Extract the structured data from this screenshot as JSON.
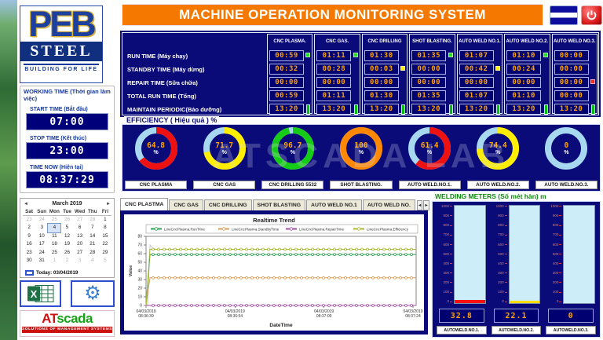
{
  "header": {
    "title": "MACHINE OPERATION MONITORING SYSTEM"
  },
  "icons": {
    "prev": "◄",
    "next": "►",
    "gear": "⚙",
    "power": "power-icon",
    "flag": "flag-icon",
    "excel": "excel-icon"
  },
  "logo": {
    "peb": "PEB",
    "steel": "STEEL",
    "tagline": "BUILDING FOR LIFE"
  },
  "atscada": {
    "at": "AT",
    "scada": "scada",
    "tagline": "SOLUTIONS OF MANAGEMENT SYSTEMS"
  },
  "working_time": {
    "title": "WORKING TIME (Thời gian làm việc)",
    "start_label": "START TIME (Bắt đầu)",
    "start_value": "07:00",
    "stop_label": "STOP TIME (Kết thúc)",
    "stop_value": "23:00",
    "now_label": "TIME NOW (Hiện tại)",
    "now_value": "08:37:29"
  },
  "calendar": {
    "month_label": "March 2019",
    "day_headers": [
      "Sat",
      "Sun",
      "Mon",
      "Tue",
      "Wed",
      "Thu",
      "Fri"
    ],
    "weeks": [
      [
        23,
        24,
        25,
        26,
        27,
        28,
        1
      ],
      [
        2,
        3,
        4,
        5,
        6,
        7,
        8
      ],
      [
        9,
        10,
        11,
        12,
        13,
        14,
        15
      ],
      [
        16,
        17,
        18,
        19,
        20,
        21,
        22
      ],
      [
        23,
        24,
        25,
        26,
        27,
        28,
        29
      ],
      [
        30,
        31,
        1,
        2,
        3,
        4,
        5
      ]
    ],
    "selected": {
      "week": 1,
      "col": 2,
      "day": 4
    },
    "today_label": "Today: 03/04/2019"
  },
  "machine_table": {
    "row_labels": [
      "RUN TIME (Máy chạy)",
      "STANDBY TIME (Máy dừng)",
      "REPAIR TIME (Sữa chữa)",
      "TOTAL RUN TIME (Tổng)",
      "MAINTAIN PERIODIC(Bảo dưỡng)"
    ],
    "bottom_bar_color": "#00c000",
    "columns": [
      {
        "name": "CNC PLASMA.",
        "values": [
          "00:59",
          "00:32",
          "00:00",
          "00:59",
          "13:20"
        ],
        "status_row": 0,
        "status_color": "#22dd22"
      },
      {
        "name": "CNC GAS.",
        "values": [
          "01:11",
          "00:28",
          "00:00",
          "01:11",
          "13:20"
        ],
        "status_row": 0,
        "status_color": "#22dd22"
      },
      {
        "name": "CNC DRILLING",
        "values": [
          "01:30",
          "00:03",
          "00:00",
          "01:30",
          "13:20"
        ],
        "status_row": 1,
        "status_color": "#ffee00"
      },
      {
        "name": "SHOT BLASTING.",
        "values": [
          "01:35",
          "00:00",
          "00:00",
          "01:35",
          "13:20"
        ],
        "status_row": 0,
        "status_color": "#22dd22"
      },
      {
        "name": "AUTO WELD NO.1.",
        "values": [
          "01:07",
          "00:42",
          "00:00",
          "01:07",
          "13:20"
        ],
        "status_row": 1,
        "status_color": "#ffee00"
      },
      {
        "name": "AUTO WELD NO.2.",
        "values": [
          "01:10",
          "00:24",
          "00:00",
          "01:10",
          "13:20"
        ],
        "status_row": 0,
        "status_color": "#22dd22"
      },
      {
        "name": "AUTO WELD NO.3.",
        "values": [
          "00:00",
          "00:00",
          "00:00",
          "00:00",
          "13:20"
        ],
        "status_row": 2,
        "status_color": "#ff2222"
      }
    ]
  },
  "efficiency": {
    "title": "EFFICIENCY ( Hiệu quả ) %",
    "watermark": "ATSCADA LAB",
    "unit": "%",
    "track_color": "#a8d8f0",
    "gauges": [
      {
        "label": "CNC PLASMA",
        "value": 64.8,
        "color": "#ee1111"
      },
      {
        "label": "CNC GAS",
        "value": 71.7,
        "color": "#ffee00"
      },
      {
        "label": "CNC DRILLING 5532",
        "value": 96.7,
        "color": "#16cc16"
      },
      {
        "label": "SHOT BLASTING.",
        "value": 100,
        "color": "#ff8800"
      },
      {
        "label": "AUTO WELD.NO.1.",
        "value": 61.4,
        "color": "#ee1111"
      },
      {
        "label": "AUTO WELD.NO.2.",
        "value": 74.4,
        "color": "#ffee00"
      },
      {
        "label": "AUTO WELD.NO.3.",
        "value": 0,
        "color": "#a8d8f0"
      }
    ]
  },
  "trend_tabs": {
    "items": [
      "CNC PLASTMA",
      "CNC GAS",
      "CNC DRILLING",
      "SHOT BLASTING",
      "AUTO WELD NO.1",
      "AUTO WELD NO."
    ],
    "active_index": 0
  },
  "chart_data": {
    "type": "line",
    "title": "Realtime Trend",
    "xlabel": "DateTime",
    "ylabel": "Value",
    "ylim": [
      0,
      80
    ],
    "yticks": [
      0,
      10,
      20,
      30,
      40,
      50,
      60,
      70,
      80
    ],
    "x_ticklabels": [
      [
        "04/03/2019",
        "08:36:39"
      ],
      [
        "04/03/2019",
        "08:36:54"
      ],
      [
        "04/03/2019",
        "08:37:09"
      ],
      [
        "04/03/2019",
        "08:37:24"
      ]
    ],
    "legend_position": "top",
    "grid": false,
    "note": "each series rises from 0 at the left edge then stays flat",
    "series": [
      {
        "name": "LineCncPlasma.RunTime",
        "color": "#2e9e50",
        "steady_value": 59
      },
      {
        "name": "LineCncPlasma.StandbyTime",
        "color": "#d9a05c",
        "steady_value": 32
      },
      {
        "name": "LineCncPlasma.RepairTime",
        "color": "#a14fa1",
        "steady_value": 0
      },
      {
        "name": "LineCncPlasma.Efficiency",
        "color": "#aab832",
        "steady_value": 65
      }
    ]
  },
  "welding_meters": {
    "title": "WELDING METERS (Số mét hàn) m",
    "scale": {
      "min": 0,
      "max": 1000,
      "step": 100
    },
    "meters": [
      {
        "label": "AUTOWELD.NO.1.",
        "value": 32.8,
        "display": "32.8",
        "fill_color": "#ff1111"
      },
      {
        "label": "AUTOWELD.NO.2.",
        "value": 22.1,
        "display": "22.1",
        "fill_color": "#ffdd00"
      },
      {
        "label": "AUTOWELD.NO.3.",
        "value": 0,
        "display": "0",
        "fill_color": "#ff1111"
      }
    ]
  }
}
